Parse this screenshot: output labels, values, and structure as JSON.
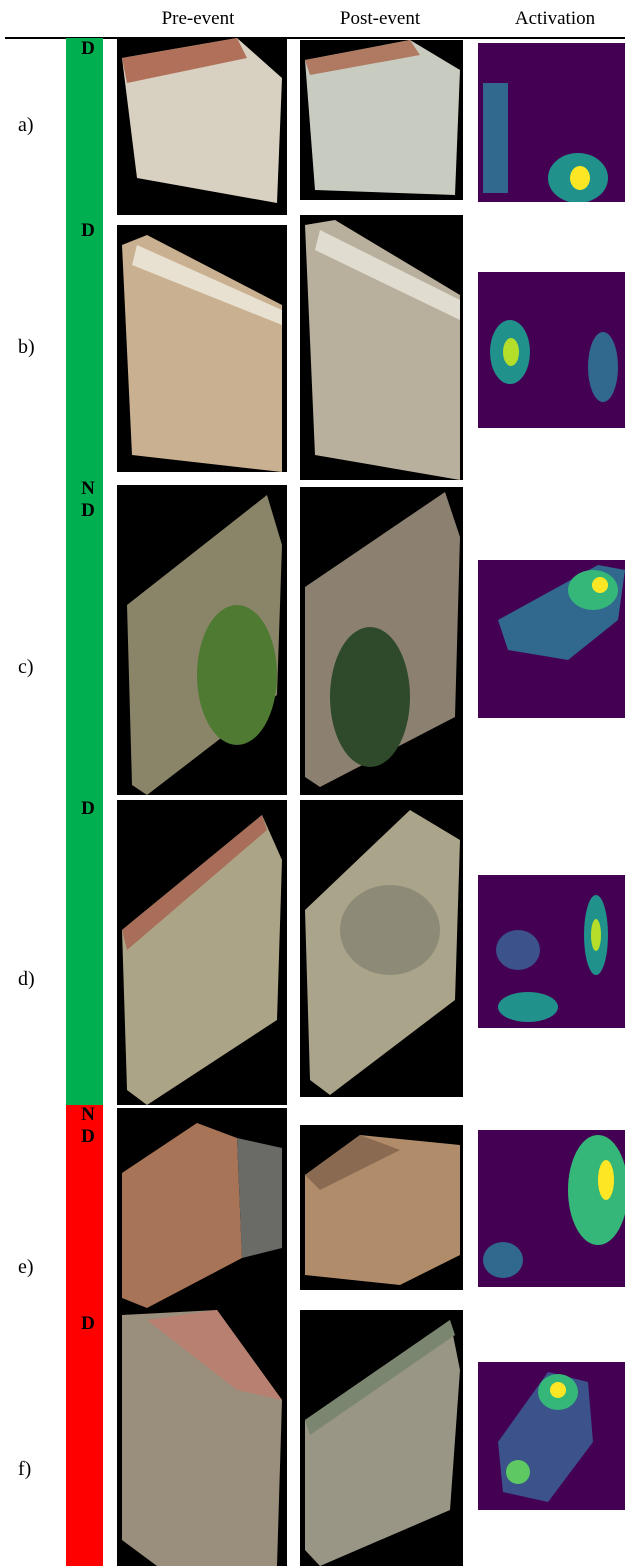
{
  "header": {
    "columns": [
      "Pre-event",
      "Post-event",
      "Activation"
    ]
  },
  "rows": [
    {
      "label": "a)",
      "status": [
        "D"
      ]
    },
    {
      "label": "b)",
      "status": [
        "D"
      ]
    },
    {
      "label": "c)",
      "status": [
        "N",
        "D"
      ]
    },
    {
      "label": "d)",
      "status": [
        "D"
      ]
    },
    {
      "label": "e)",
      "status": [
        "N",
        "D"
      ]
    },
    {
      "label": "f)",
      "status": [
        "D"
      ]
    }
  ]
}
